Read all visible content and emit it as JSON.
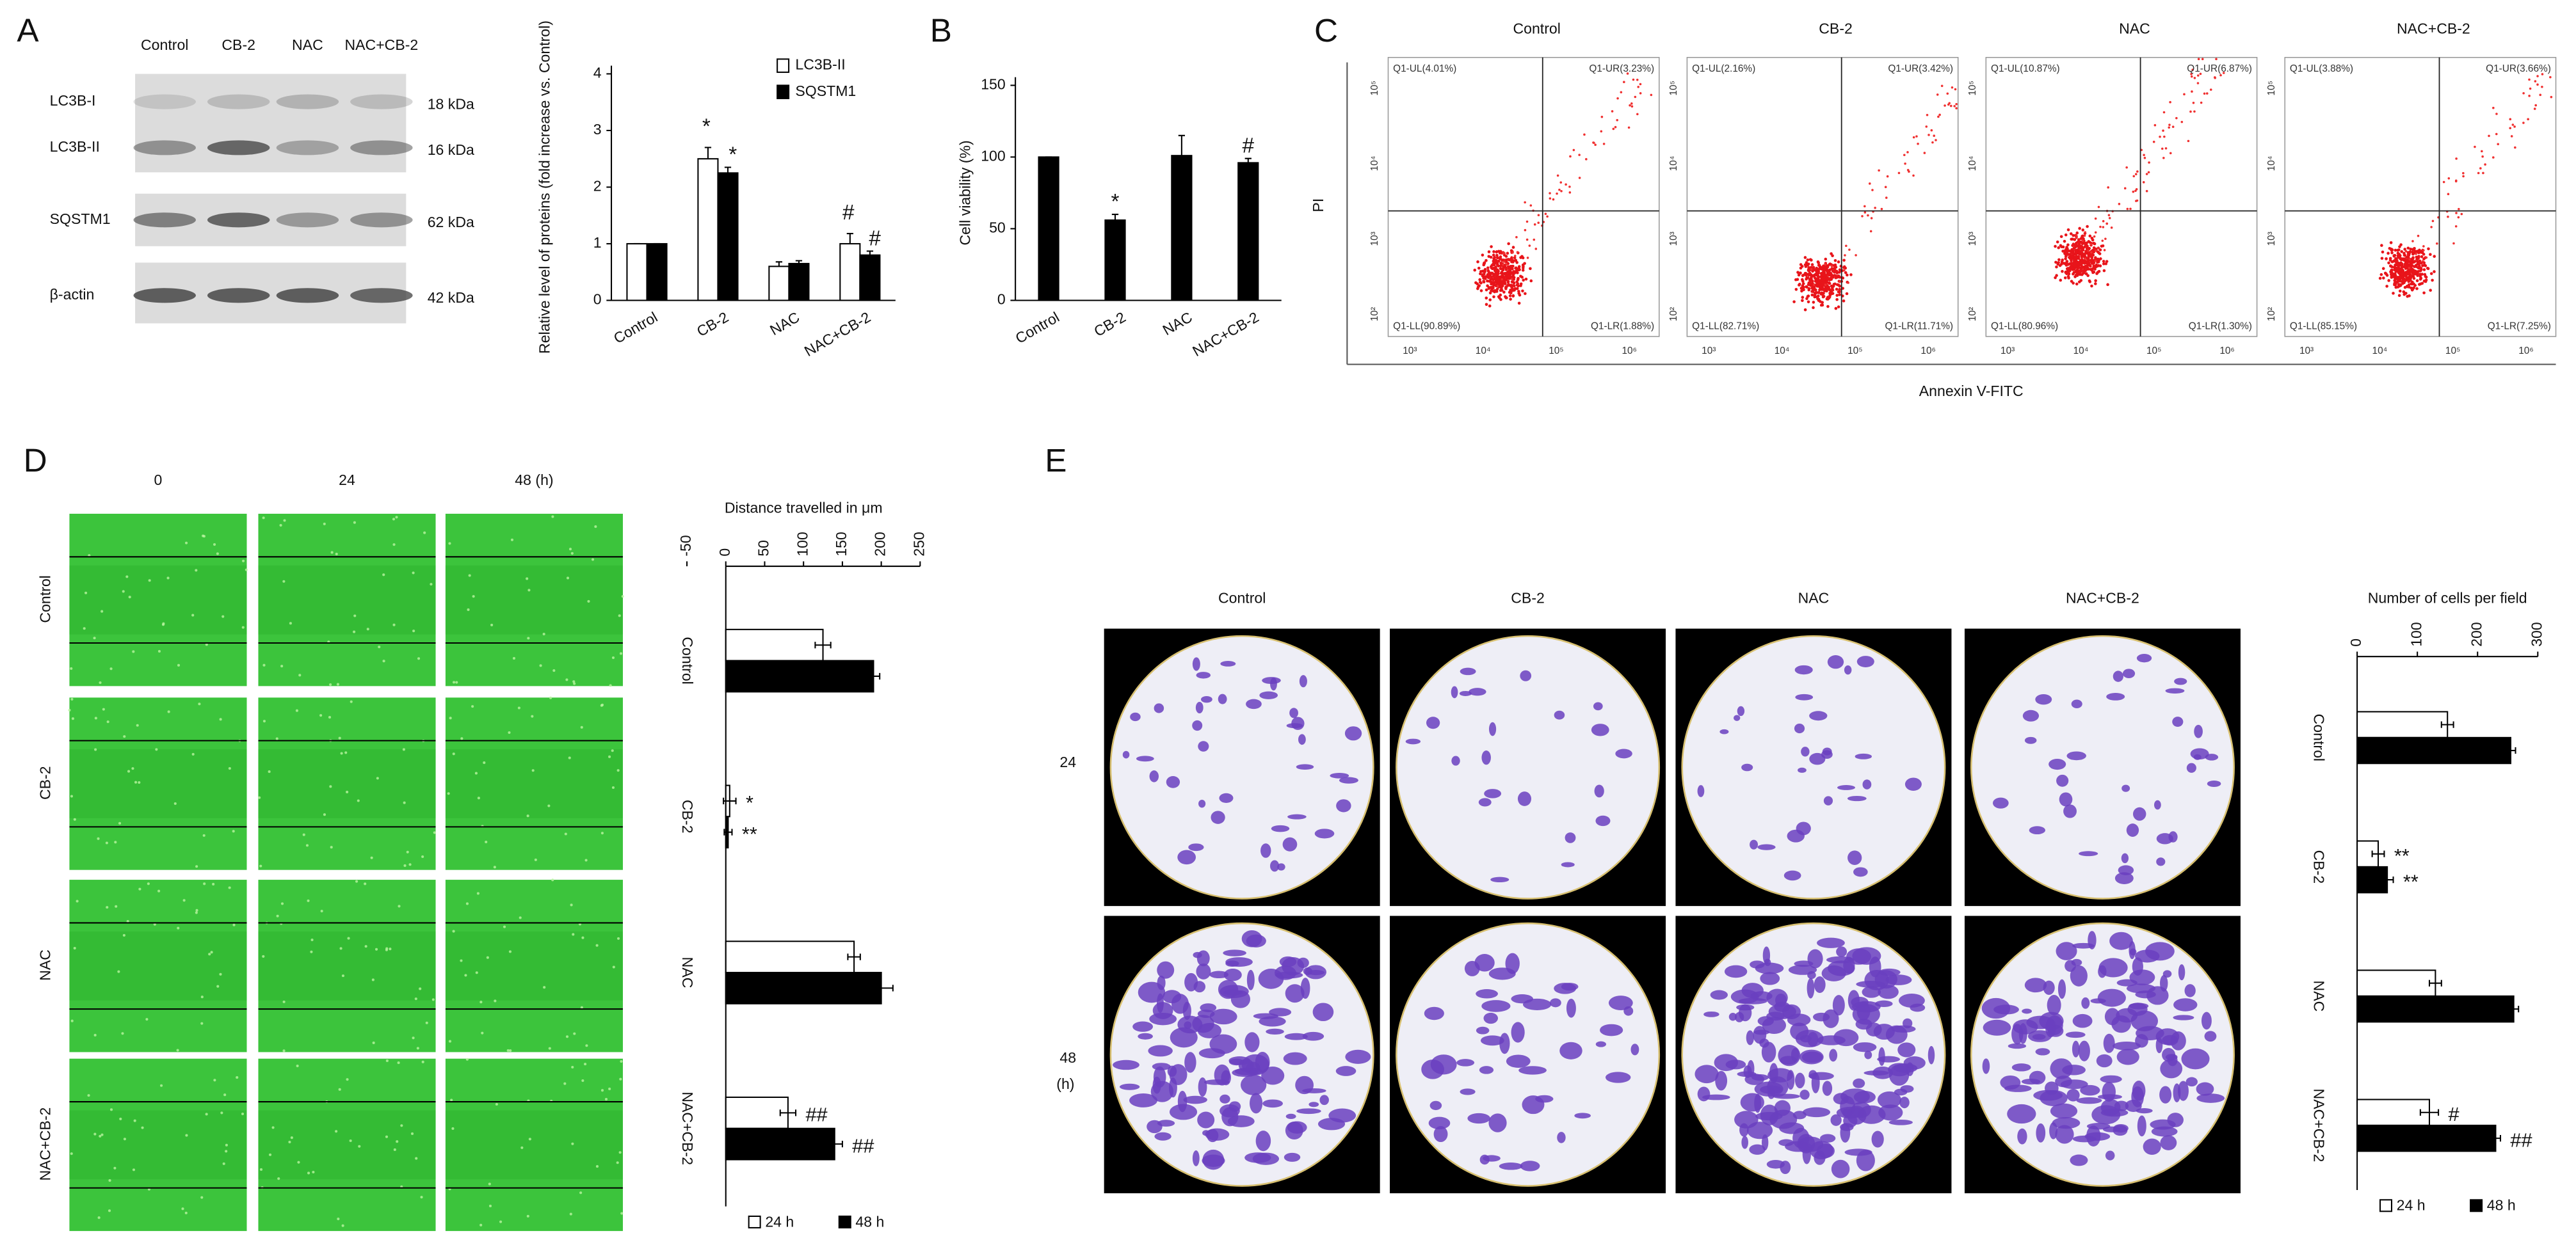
{
  "panels": {
    "a": "A",
    "b": "B",
    "c": "C",
    "d": "D",
    "e": "E"
  },
  "blot": {
    "lanes": [
      "Control",
      "CB-2",
      "NAC",
      "NAC+CB-2"
    ],
    "bands": [
      {
        "name": "LC3B-I",
        "size": "18 kDa"
      },
      {
        "name": "LC3B-II",
        "size": "16 kDa"
      },
      {
        "name": "SQSTM1",
        "size": "62 kDa"
      },
      {
        "name": "β-actin",
        "size": "42 kDa"
      }
    ]
  },
  "flow": {
    "y_label": "PI",
    "x_label": "Annexin V-FITC",
    "xticks": [
      "10³",
      "10⁴",
      "10⁵",
      "10⁶"
    ],
    "yticks": [
      "10²",
      "10³",
      "10⁴",
      "10⁵"
    ],
    "plots": [
      {
        "title": "Control",
        "ul": "Q1-UL(4.01%)",
        "ur": "Q1-UR(3.23%)",
        "ll": "Q1-LL(90.89%)",
        "lr": "Q1-LR(1.88%)"
      },
      {
        "title": "CB-2",
        "ul": "Q1-UL(2.16%)",
        "ur": "Q1-UR(3.42%)",
        "ll": "Q1-LL(82.71%)",
        "lr": "Q1-LR(11.71%)"
      },
      {
        "title": "NAC",
        "ul": "Q1-UL(10.87%)",
        "ur": "Q1-UR(6.87%)",
        "ll": "Q1-LL(80.96%)",
        "lr": "Q1-LR(1.30%)"
      },
      {
        "title": "NAC+CB-2",
        "ul": "Q1-UL(3.88%)",
        "ur": "Q1-UR(3.66%)",
        "ll": "Q1-LL(85.15%)",
        "lr": "Q1-LR(7.25%)"
      }
    ]
  },
  "scratch": {
    "times": [
      "0",
      "24",
      "48 (h)"
    ],
    "rows": [
      "Control",
      "CB-2",
      "NAC",
      "NAC+CB-2"
    ]
  },
  "transwell": {
    "columns": [
      "Control",
      "CB-2",
      "NAC",
      "NAC+CB-2"
    ],
    "rows": [
      "24",
      "48"
    ],
    "unit": "(h)"
  },
  "chart_data": [
    {
      "type": "bar",
      "y_label": "Relative level of proteins (fold increase vs. Control)",
      "categories": [
        "Control",
        "CB-2",
        "NAC",
        "NAC+CB-2"
      ],
      "series": [
        {
          "name": "LC3B-II",
          "color": "#ffffff",
          "values": [
            1,
            2.5,
            0.6,
            1.0
          ],
          "errors": [
            0,
            0.2,
            0.08,
            0.18
          ],
          "labels": [
            null,
            "*",
            null,
            "#"
          ]
        },
        {
          "name": "SQSTM1",
          "color": "#000000",
          "values": [
            1,
            2.25,
            0.65,
            0.8
          ],
          "errors": [
            0,
            0.1,
            0.05,
            0.07
          ],
          "labels": [
            null,
            "*",
            null,
            "#"
          ]
        }
      ],
      "ylim": [
        0,
        4
      ],
      "yticks": [
        0,
        1,
        2,
        3,
        4
      ],
      "legend": "top-right"
    },
    {
      "type": "bar",
      "y_label": "Cell viability (%)",
      "categories": [
        "Control",
        "CB-2",
        "NAC",
        "NAC+CB-2"
      ],
      "color": "#000000",
      "values": [
        100,
        56,
        101,
        96
      ],
      "errors": [
        0,
        4,
        14,
        3
      ],
      "labels": [
        null,
        "*",
        null,
        "#"
      ],
      "ylim": [
        0,
        150
      ],
      "yticks": [
        0,
        50,
        100,
        150
      ]
    },
    {
      "type": "hbar",
      "title": "Distance travelled in μm",
      "categories": [
        "Control",
        "CB-2",
        "NAC",
        "NAC+CB-2"
      ],
      "series": [
        {
          "name": "24 h",
          "color": "#ffffff",
          "values": [
            125,
            5,
            165,
            80
          ],
          "errors": [
            10,
            8,
            8,
            10
          ],
          "labels": [
            null,
            "*",
            null,
            "##"
          ]
        },
        {
          "name": "48 h",
          "color": "#000000",
          "values": [
            190,
            3,
            200,
            140
          ],
          "errors": [
            8,
            5,
            15,
            10
          ],
          "labels": [
            null,
            "**",
            null,
            "##"
          ]
        }
      ],
      "xlim": [
        -50,
        250
      ],
      "xticks": [
        -50,
        0,
        50,
        100,
        150,
        200,
        250
      ],
      "legend": "bottom"
    },
    {
      "type": "hbar",
      "title": "Number of cells per field",
      "categories": [
        "Control",
        "CB-2",
        "NAC",
        "NAC+CB-2"
      ],
      "series": [
        {
          "name": "24 h",
          "color": "#ffffff",
          "values": [
            150,
            35,
            130,
            120
          ],
          "errors": [
            10,
            10,
            10,
            15
          ],
          "labels": [
            null,
            "**",
            null,
            "#"
          ]
        },
        {
          "name": "48 h",
          "color": "#000000",
          "values": [
            255,
            50,
            260,
            230
          ],
          "errors": [
            8,
            10,
            8,
            8
          ],
          "labels": [
            null,
            "**",
            null,
            "##"
          ]
        }
      ],
      "xlim": [
        0,
        300
      ],
      "xticks": [
        0,
        100,
        200,
        300
      ],
      "legend": "bottom"
    }
  ]
}
